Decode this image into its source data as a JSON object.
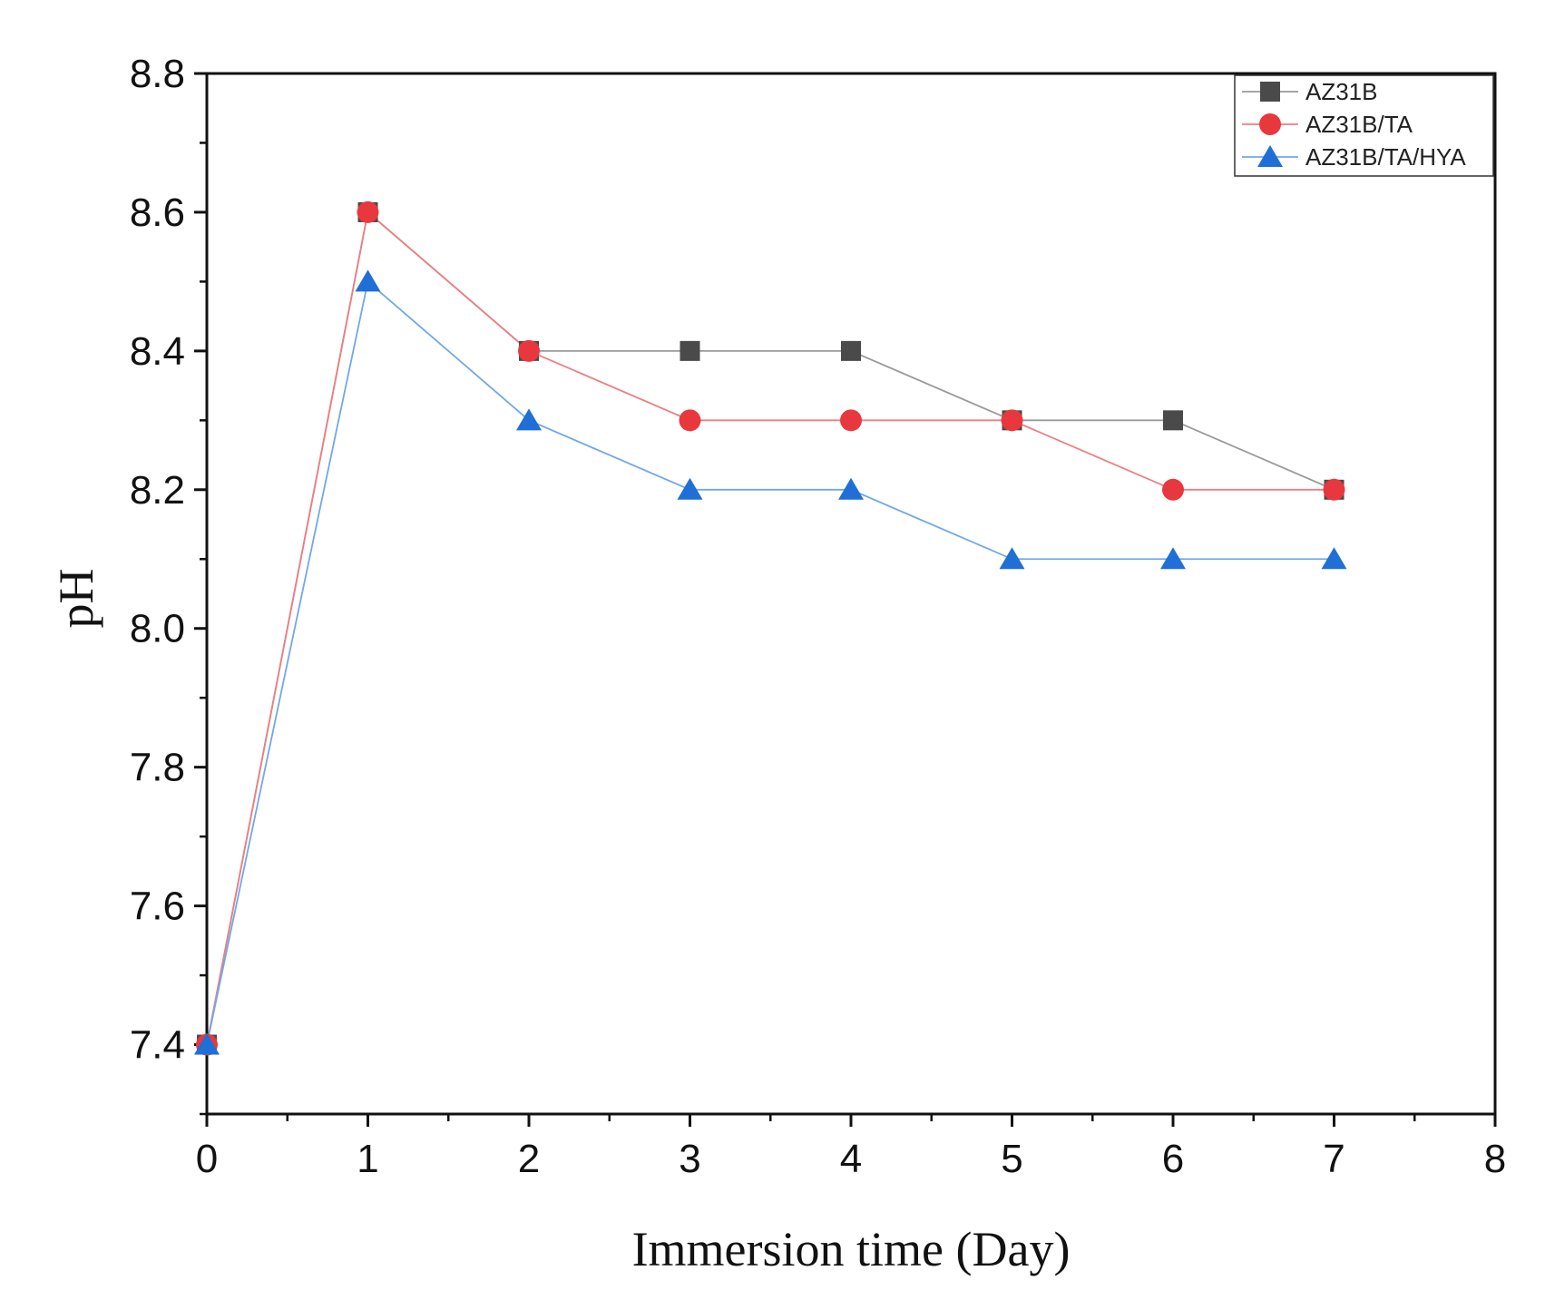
{
  "chart_data": {
    "type": "line",
    "title": "",
    "xlabel": "Immersion time (Day)",
    "ylabel": "pH",
    "xlim": [
      0,
      8
    ],
    "ylim": [
      7.3,
      8.8
    ],
    "x_ticks": [
      "0",
      "1",
      "2",
      "3",
      "4",
      "5",
      "6",
      "7",
      "8"
    ],
    "y_ticks": [
      "7.4",
      "7.6",
      "7.8",
      "8.0",
      "8.2",
      "8.4",
      "8.6",
      "8.8"
    ],
    "grid": false,
    "legend_position": "top-right",
    "x": [
      0,
      1,
      2,
      3,
      4,
      5,
      6,
      7
    ],
    "series": [
      {
        "name": "AZ31B",
        "marker": "square",
        "color": "#4a4a4a",
        "line_color": "#9a9a9a",
        "values": [
          7.4,
          8.6,
          8.4,
          8.4,
          8.4,
          8.3,
          8.3,
          8.2
        ]
      },
      {
        "name": "AZ31B/TA",
        "marker": "circle",
        "color": "#e8383d",
        "line_color": "#ec7f83",
        "values": [
          7.4,
          8.6,
          8.4,
          8.3,
          8.3,
          8.3,
          8.2,
          8.2
        ]
      },
      {
        "name": "AZ31B/TA/HYA",
        "marker": "triangle",
        "color": "#1f6fd6",
        "line_color": "#72a8e6",
        "values": [
          7.4,
          8.5,
          8.3,
          8.2,
          8.2,
          8.1,
          8.1,
          8.1
        ]
      }
    ]
  }
}
